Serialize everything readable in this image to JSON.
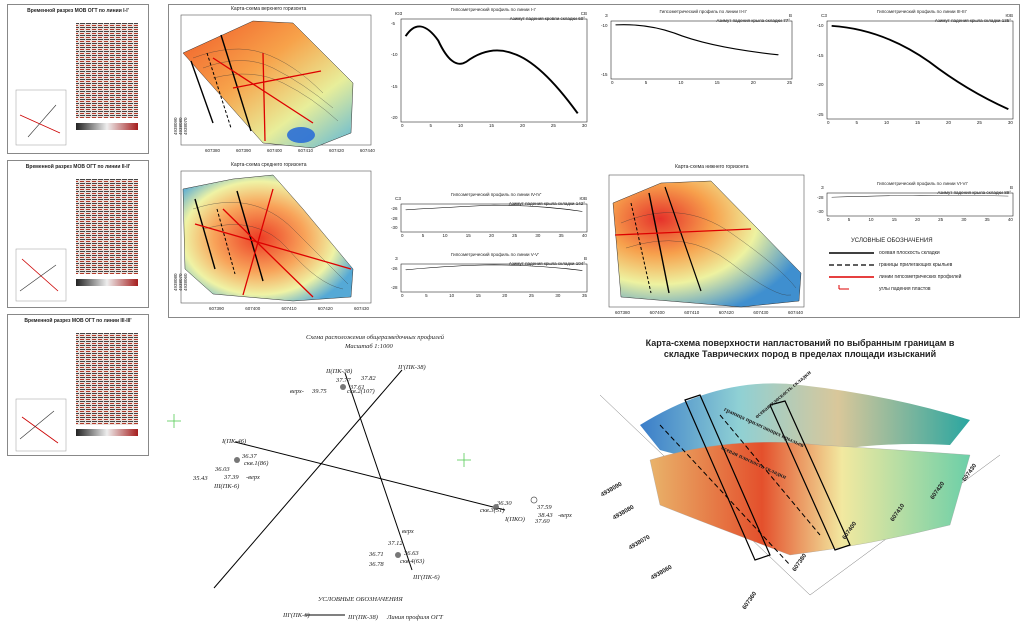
{
  "seismic_sections": [
    {
      "title": "Временной разрез МОВ ОГТ по линии I-I'"
    },
    {
      "title": "Временной разрез МОВ ОГТ по линии II-II'"
    },
    {
      "title": "Временной разрез МОВ ОГТ по линии III-III'"
    }
  ],
  "maps": {
    "upper": {
      "title": "Карта-схема верхнего горизонта"
    },
    "middle": {
      "title": "Карта-схема среднего горизонта"
    },
    "lower": {
      "title": "Карта-схема нижнего горизонта"
    },
    "x_ticks": [
      "607380",
      "607390",
      "607400",
      "607410",
      "607420",
      "607430",
      "607440"
    ],
    "y_ticks_upper": [
      "4938090",
      "4938080",
      "4938070"
    ],
    "y_ticks_middle": [
      "4938080",
      "4938070",
      "4938060"
    ]
  },
  "profiles": [
    {
      "title": "Гипсометрический профиль по линии I-I'",
      "left": "ЮЗ",
      "right": "СВ",
      "note": "Азимут падения кровли складки 60°",
      "x_ticks": [
        "0",
        "5",
        "10",
        "15",
        "20",
        "25",
        "30"
      ],
      "y_ticks": [
        "-5",
        "-10",
        "-15",
        "-20"
      ]
    },
    {
      "title": "Гипсометрический профиль по линии II-II'",
      "left": "З",
      "right": "В",
      "note": "Азимут падения крыла складки 77°",
      "x_ticks": [
        "0",
        "5",
        "10",
        "15",
        "20",
        "25"
      ],
      "y_ticks": [
        "-10",
        "-15"
      ]
    },
    {
      "title": "Гипсометрический профиль по линии III-III'",
      "left": "СЗ",
      "right": "ЮВ",
      "note": "Азимут падения крыла складки 135°",
      "x_ticks": [
        "0",
        "5",
        "10",
        "15",
        "20",
        "25",
        "30"
      ],
      "y_ticks": [
        "-10",
        "-15",
        "-20",
        "-25"
      ]
    },
    {
      "title": "Гипсометрический профиль по линии IV-IV'",
      "left": "СЗ",
      "right": "ЮВ",
      "note": "Азимут падения крыла складки 142°",
      "x_ticks": [
        "0",
        "5",
        "10",
        "15",
        "20",
        "25",
        "30",
        "35",
        "40"
      ],
      "y_ticks": [
        "-26",
        "-28",
        "-30"
      ]
    },
    {
      "title": "Гипсометрический профиль по линии V-V'",
      "left": "З",
      "right": "В",
      "note": "Азимут падения крыла складки 104°",
      "x_ticks": [
        "0",
        "5",
        "10",
        "15",
        "20",
        "25",
        "30",
        "35"
      ],
      "y_ticks": [
        "-26",
        "-28"
      ]
    },
    {
      "title": "Гипсометрический профиль по линии VI-VI'",
      "left": "З",
      "right": "В",
      "note": "Азимут падения крыла складки 89°",
      "x_ticks": [
        "0",
        "5",
        "10",
        "15",
        "20",
        "25",
        "30",
        "35",
        "40"
      ],
      "y_ticks": [
        "-28",
        "-30"
      ]
    }
  ],
  "legend": {
    "title": "УСЛОВНЫЕ ОБОЗНАЧЕНИЯ",
    "items": [
      "осевая плоскость складки",
      "границы прилегающих крыльев",
      "линии гипсометрических профилей",
      "углы падения пластов"
    ]
  },
  "scheme": {
    "title": "Схема расположения общеразведочных профилей",
    "scale": "Масштаб 1:1000",
    "line_labels": [
      "II(ПК-38)",
      "II'(ПК-38)",
      "I(ПК-46)",
      "III(ПК-6)",
      "I(ПКО)",
      "III'(ПК-6)"
    ],
    "wells": [
      {
        "name": "скв.2(107)",
        "values": [
          "37.77",
          "37.82",
          "37.61",
          "39.75"
        ],
        "verkh": "верх-"
      },
      {
        "name": "скв.1(86)",
        "values": [
          "36.37",
          "36.03",
          "35.43",
          "37.39"
        ],
        "verkh": "-верх"
      },
      {
        "name": "скв.3(51)",
        "values": [
          "36.30",
          "37.59",
          "38.43",
          "37.60"
        ],
        "verkh": "-верх"
      },
      {
        "name": "скв.4(63)",
        "values": [
          "36.71",
          "36.78",
          "36.63",
          "37.12"
        ],
        "verkh": "верх"
      }
    ],
    "legend_title": "УСЛОВНЫЕ ОБОЗНАЧЕНИЯ",
    "legend_line_a": "III'(ПК-6)",
    "legend_line_b": "III'(ПК-38)",
    "legend_desc": "Линия профиля ОГТ"
  },
  "model3d": {
    "caption": "Карта-схема поверхности напластований по выбранным границам в складке Таврических пород в пределах площади изысканий",
    "labels": [
      "осевая плоскость складки",
      "граница прилегающих крыльев",
      "осевая плоскость складки"
    ],
    "x_ticks": [
      "607360",
      "607380",
      "607400",
      "607410",
      "607420",
      "607430"
    ],
    "y_ticks": [
      "4938060",
      "4938070",
      "4938080",
      "4938090"
    ]
  }
}
